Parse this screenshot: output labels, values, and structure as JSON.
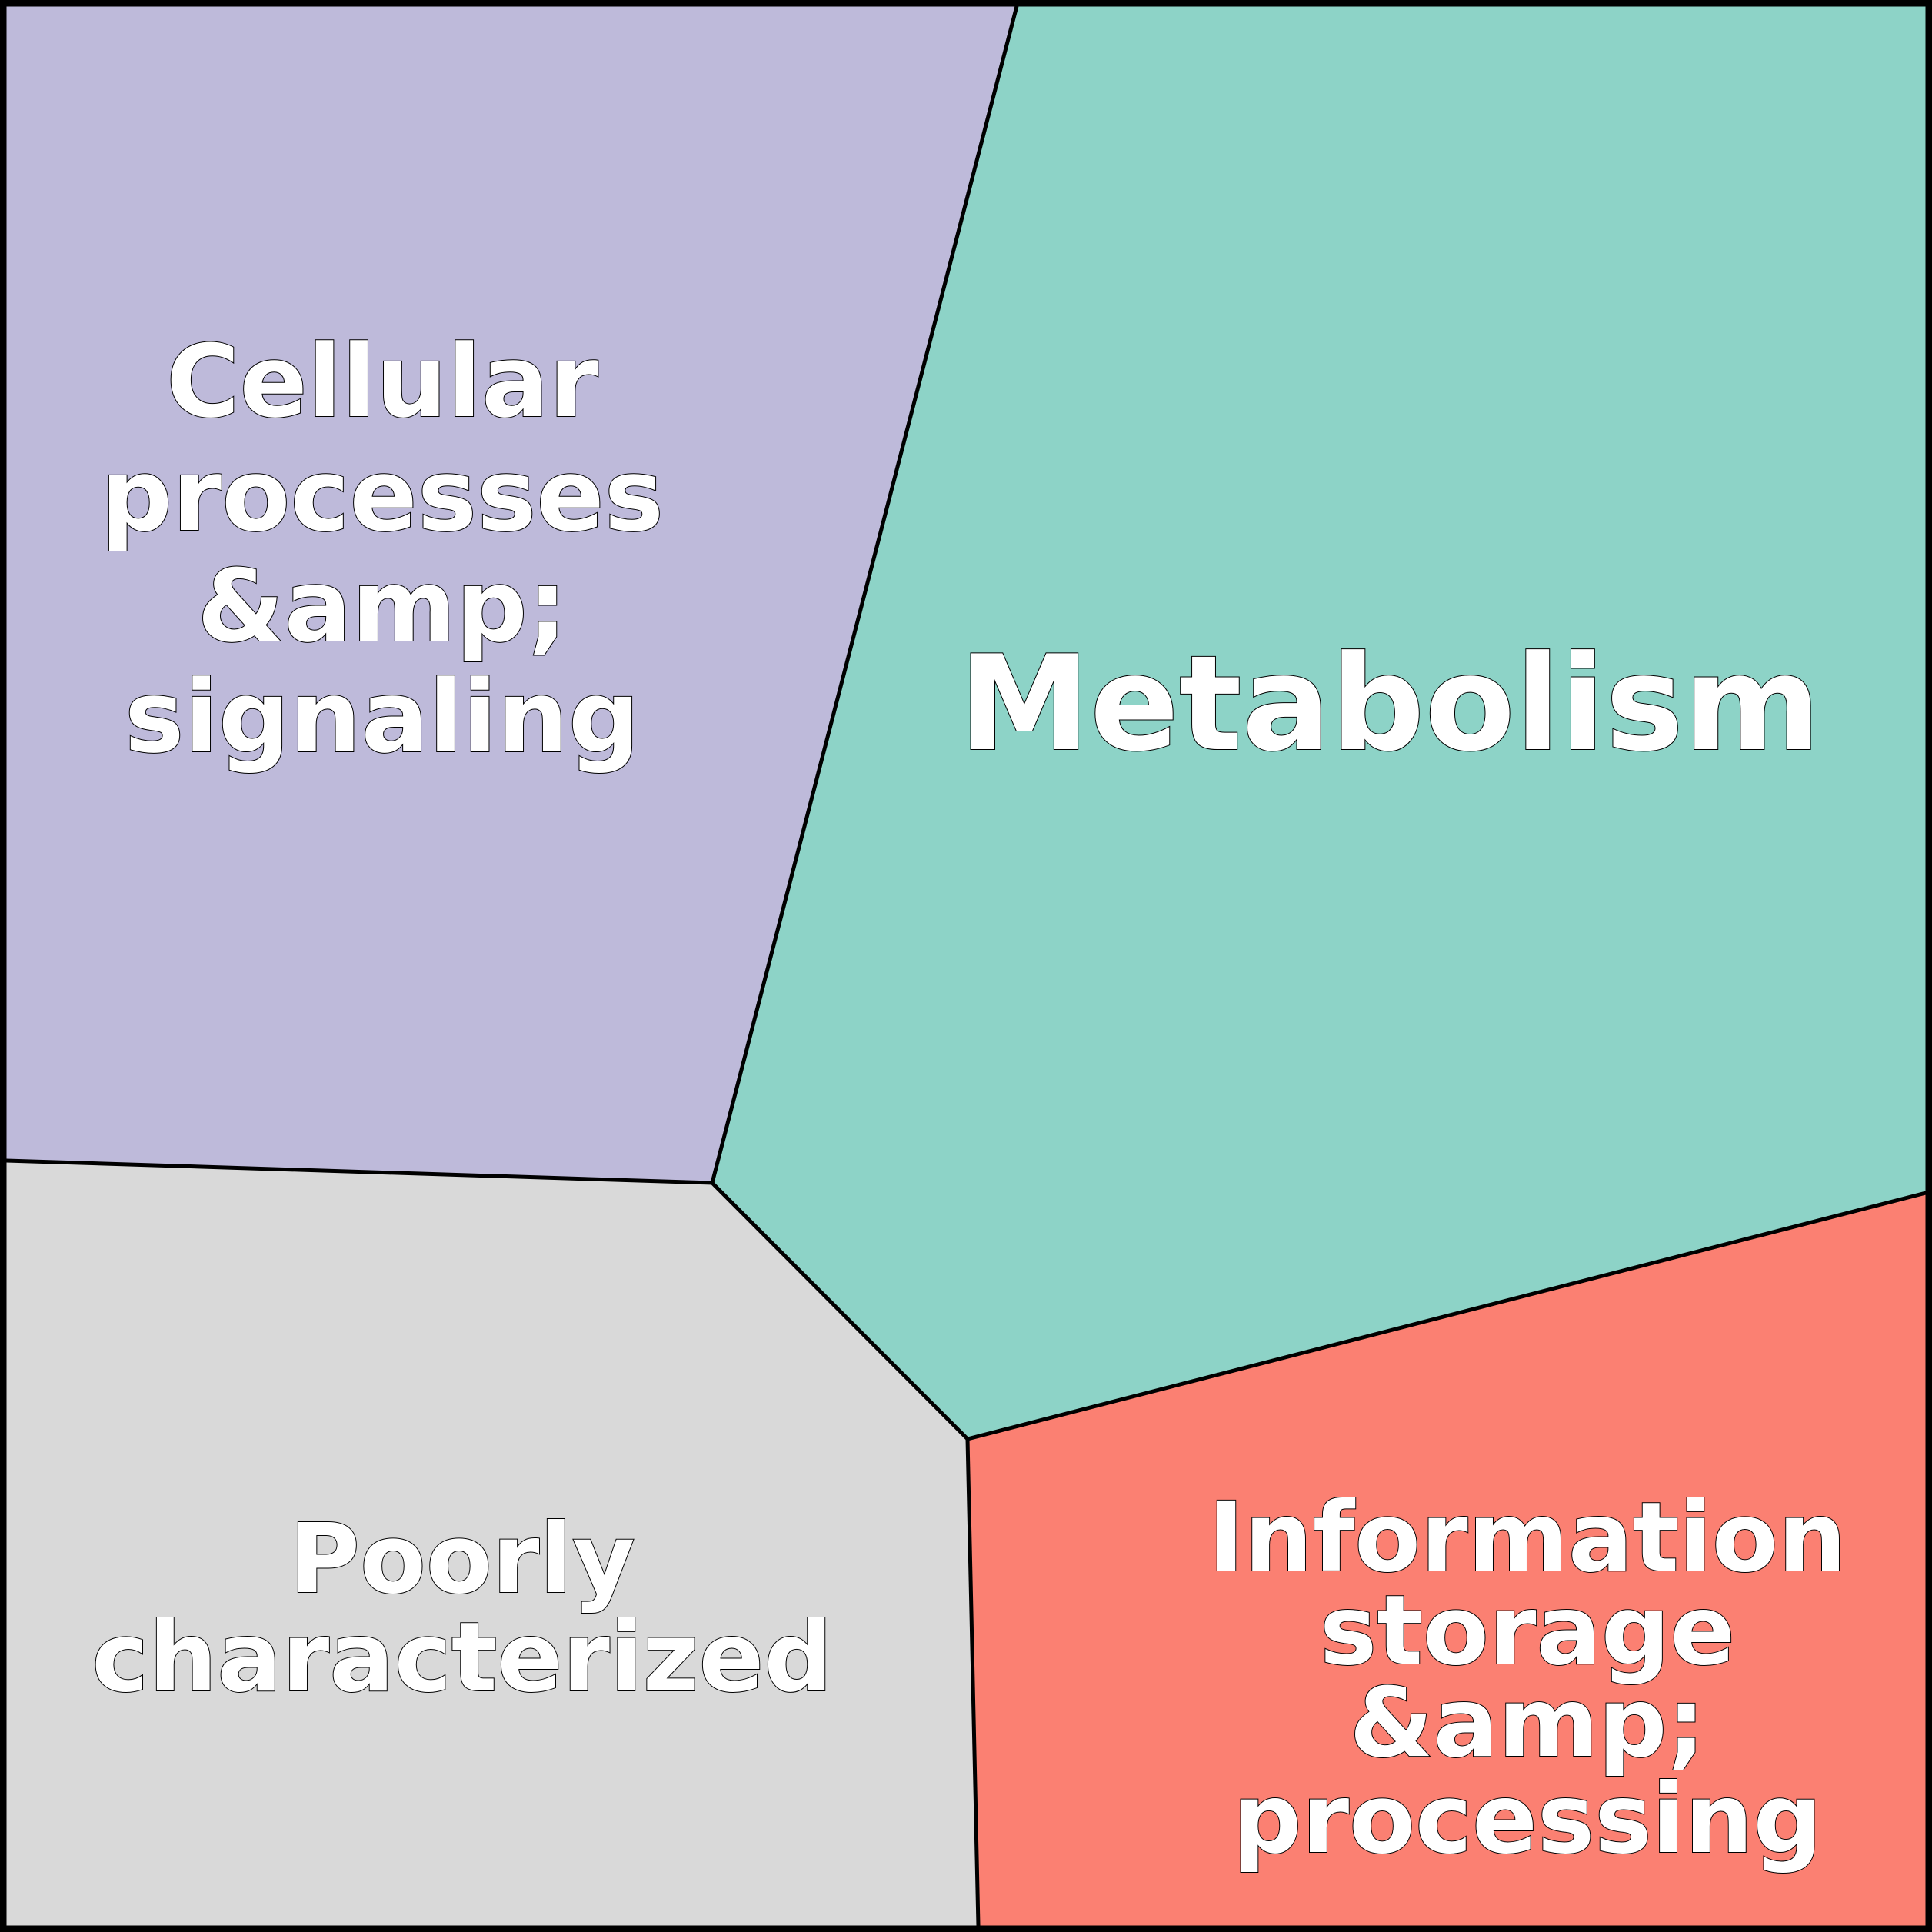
{
  "regions": [
    {
      "label": [
        "Cellular",
        "processes",
        "&amp;",
        "signaling"
      ]
    },
    {
      "label": [
        "Metabolism"
      ]
    },
    {
      "label": [
        "Poorly",
        "characterized"
      ]
    },
    {
      "label": [
        "Information",
        "storage",
        "&amp;",
        "processing"
      ]
    }
  ]
}
